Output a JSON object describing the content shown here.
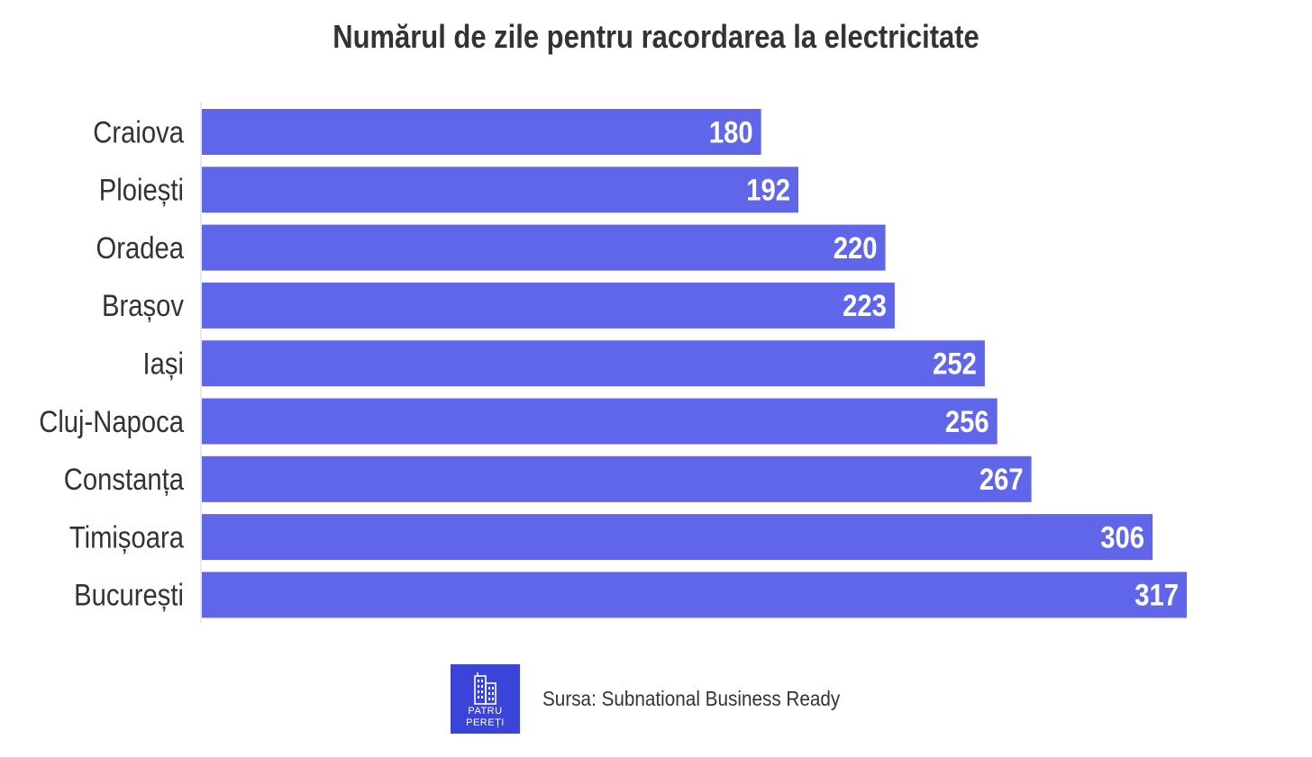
{
  "chart_data": {
    "type": "bar",
    "orientation": "horizontal",
    "title": "Numărul de zile pentru racordarea la electricitate",
    "categories": [
      "Craiova",
      "Ploiești",
      "Oradea",
      "Brașov",
      "Iași",
      "Cluj-Napoca",
      "Constanța",
      "Timișoara",
      "București"
    ],
    "values": [
      180,
      192,
      220,
      223,
      252,
      256,
      267,
      306,
      317
    ],
    "xlabel": "",
    "ylabel": "",
    "xlim": [
      0,
      317
    ],
    "grid": false,
    "legend": "none",
    "bar_color": "#5f66ea",
    "data_labels": "inside-end"
  },
  "footer": {
    "logo_text_line1": "PATRU",
    "logo_text_line2": "PEREȚI",
    "logo_icon": "building-icon",
    "logo_color": "#3b44d9",
    "source": "Sursa: Subnational Business Ready"
  }
}
